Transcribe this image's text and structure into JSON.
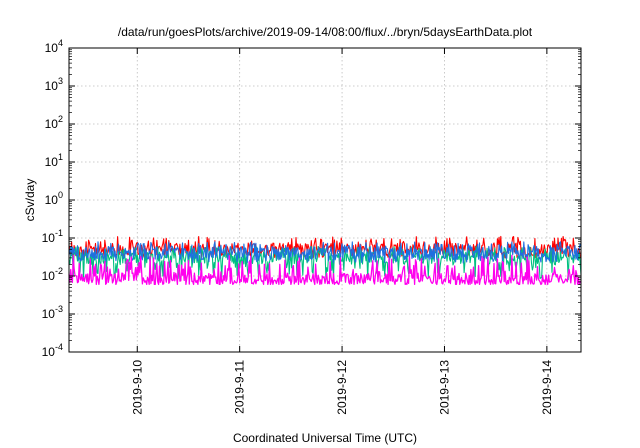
{
  "chart_data": {
    "type": "line",
    "title": "/data/run/goesPlots/archive/2019-09-14/08:00/flux/../bryn/5daysEarthData.plot",
    "xlabel": "Coordinated Universal Time (UTC)",
    "ylabel": "cSv/day",
    "yscale": "log",
    "ylim": [
      0.0001,
      10000
    ],
    "y_ticks": [
      {
        "value": 0.0001,
        "base": "10",
        "exp": "-4"
      },
      {
        "value": 0.001,
        "base": "10",
        "exp": "-3"
      },
      {
        "value": 0.01,
        "base": "10",
        "exp": "-2"
      },
      {
        "value": 0.1,
        "base": "10",
        "exp": "-1"
      },
      {
        "value": 1,
        "base": "10",
        "exp": "0"
      },
      {
        "value": 10,
        "base": "10",
        "exp": "1"
      },
      {
        "value": 100,
        "base": "10",
        "exp": "2"
      },
      {
        "value": 1000,
        "base": "10",
        "exp": "3"
      },
      {
        "value": 10000,
        "base": "10",
        "exp": "4"
      }
    ],
    "xlim": [
      "2019-09-09T08:00",
      "2019-09-14T08:00"
    ],
    "x_ticks": [
      "2019-9-10",
      "2019-9-11",
      "2019-9-12",
      "2019-9-13",
      "2019-9-14"
    ],
    "grid": true,
    "legend": "none",
    "series": [
      {
        "color": "#ff0000",
        "base": 0.05,
        "low": 0.03,
        "high": 0.11
      },
      {
        "color": "#00c080",
        "base": 0.03,
        "low": 0.008,
        "high": 0.06
      },
      {
        "color": "#1f6fe0",
        "base": 0.04,
        "low": 0.022,
        "high": 0.08
      },
      {
        "color": "#ff00ee",
        "base": 0.008,
        "low": 0.006,
        "high": 0.035
      }
    ]
  }
}
